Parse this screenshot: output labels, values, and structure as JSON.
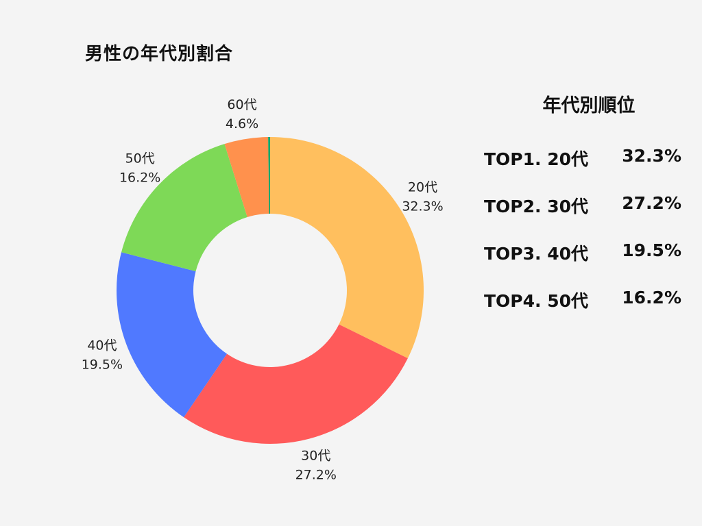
{
  "chart_data": {
    "type": "pie",
    "title": "男性の年代別割合",
    "slices": [
      {
        "label": "20代",
        "value": 32.3,
        "pct_label": "32.3%",
        "color": "#ffbf5e"
      },
      {
        "label": "30代",
        "value": 27.2,
        "pct_label": "27.2%",
        "color": "#ff5a5a"
      },
      {
        "label": "40代",
        "value": 19.5,
        "pct_label": "19.5%",
        "color": "#5079ff"
      },
      {
        "label": "50代",
        "value": 16.2,
        "pct_label": "16.2%",
        "color": "#7ed957"
      },
      {
        "label": "60代",
        "value": 4.6,
        "pct_label": "4.6%",
        "color": "#ff914d"
      },
      {
        "label": "",
        "value": 0.2,
        "pct_label": "",
        "color": "#00a86b"
      }
    ],
    "donut": true
  },
  "ranking": {
    "title": "年代別順位",
    "items": [
      {
        "label": "TOP1. 20代",
        "value": "32.3%"
      },
      {
        "label": "TOP2. 30代",
        "value": "27.2%"
      },
      {
        "label": "TOP3. 40代",
        "value": "19.5%"
      },
      {
        "label": "TOP4. 50代",
        "value": "16.2%"
      }
    ]
  }
}
